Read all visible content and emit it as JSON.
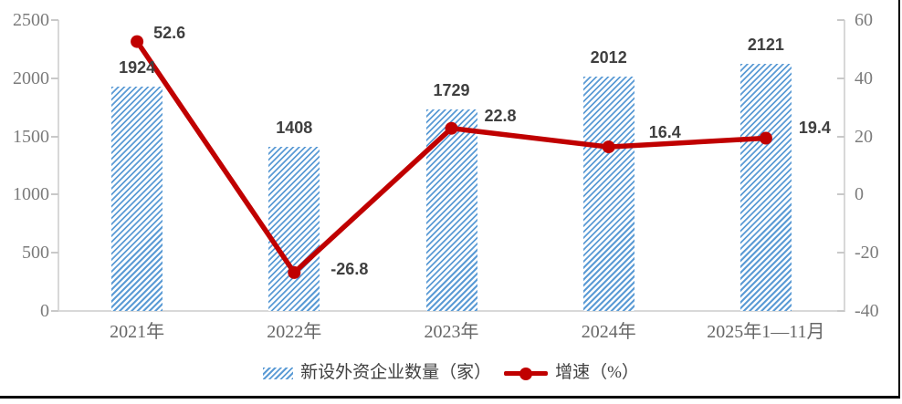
{
  "chart_data": {
    "type": "bar+line",
    "title": "",
    "categories": [
      "2021年",
      "2022年",
      "2023年",
      "2024年",
      "2025年1—11月"
    ],
    "series": [
      {
        "name": "新设外资企业数量（家）",
        "type": "bar",
        "axis": "left",
        "values": [
          1924,
          1408,
          1729,
          2012,
          2121
        ],
        "labels": [
          "1924",
          "1408",
          "1729",
          "2012",
          "2121"
        ],
        "color": "#5B9BD5",
        "pattern": "diagonal-hatch"
      },
      {
        "name": "增速（%）",
        "type": "line",
        "axis": "right",
        "values": [
          52.6,
          -26.8,
          22.8,
          16.4,
          19.4
        ],
        "labels": [
          "52.6",
          "-26.8",
          "22.8",
          "16.4",
          "19.4"
        ],
        "color": "#C00000",
        "marker": "circle"
      }
    ],
    "left_axis": {
      "min": 0,
      "max": 2500,
      "step": 500,
      "ticks": [
        "0",
        "500",
        "1000",
        "1500",
        "2000",
        "2500"
      ]
    },
    "right_axis": {
      "min": -40,
      "max": 60,
      "step": 20,
      "ticks": [
        "-40",
        "-20",
        "0",
        "20",
        "40",
        "60"
      ]
    },
    "grid": false,
    "legend_position": "bottom"
  },
  "colors": {
    "bar": "#5B9BD5",
    "line": "#C00000",
    "axis_line": "#d8d8d8",
    "axis_text": "#7b7b7b",
    "x_axis_text": "#666666",
    "data_label": "#3f3f3f"
  }
}
